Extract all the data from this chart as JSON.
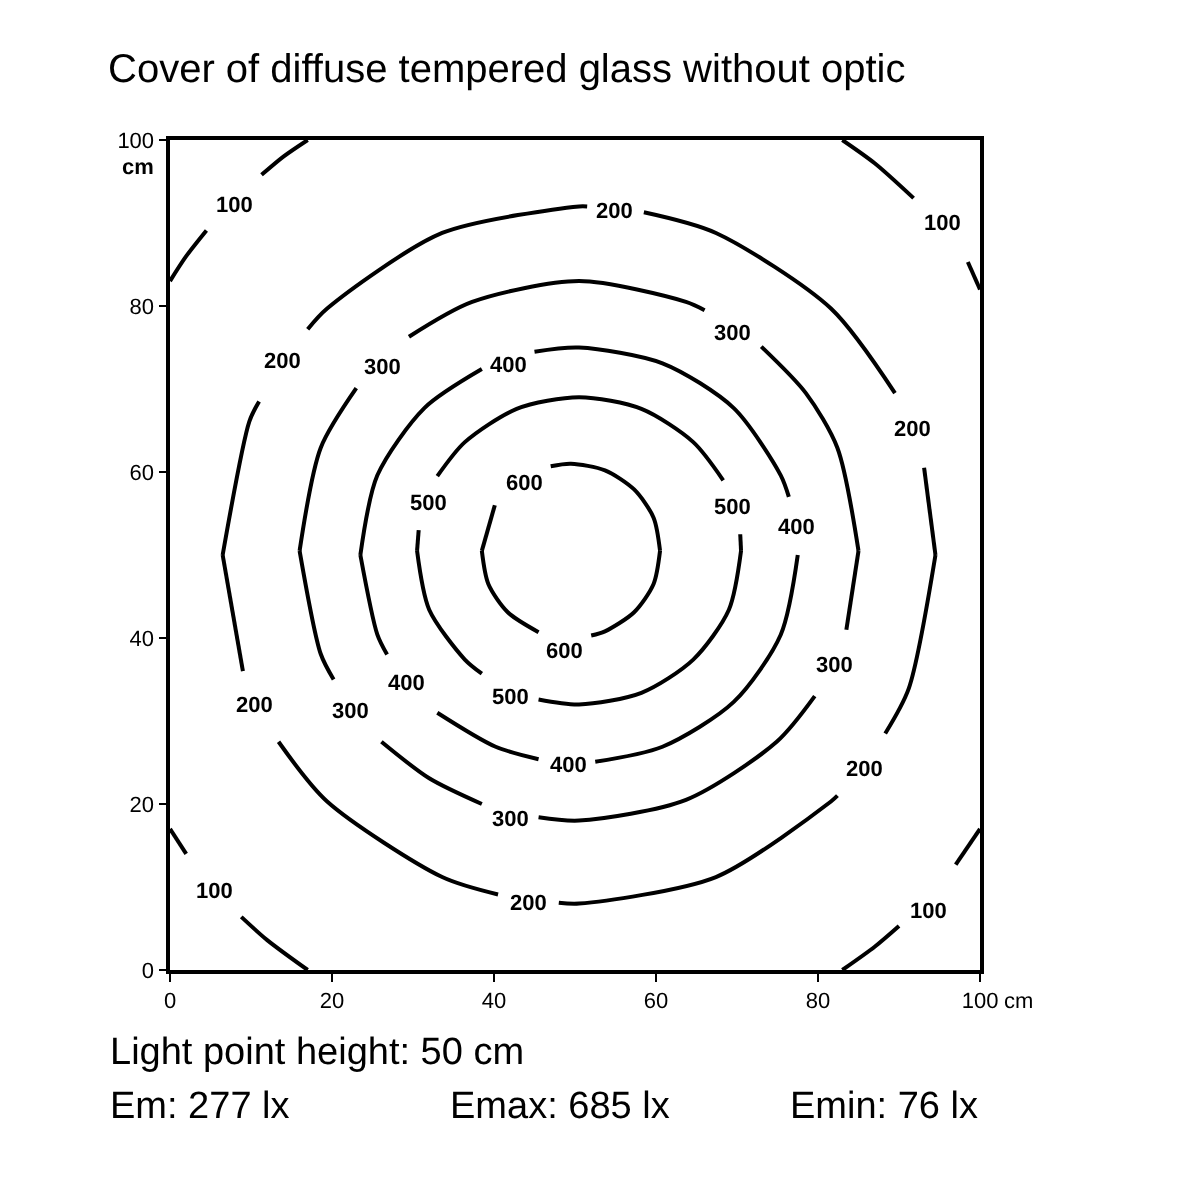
{
  "chart_data": {
    "type": "line",
    "title": "Cover of diffuse tempered glass without optic",
    "xlabel": "cm",
    "ylabel": "cm",
    "xlim": [
      0,
      100
    ],
    "ylim": [
      0,
      100
    ],
    "xticks": [
      0,
      20,
      40,
      60,
      80,
      100
    ],
    "yticks": [
      0,
      20,
      40,
      60,
      80,
      100
    ],
    "marker": "none",
    "line_style": "solid",
    "series": [
      {
        "color": "#000000",
        "x": [
          0,
          2,
          4.5,
          7.9,
          11.3,
          14,
          17
        ],
        "values": [
          83,
          86,
          89.1,
          null,
          95.8,
          98,
          100
        ]
      },
      {
        "color": "#000000",
        "x": [
          83,
          87,
          91.8,
          95.3,
          98.5,
          100
        ],
        "values": [
          100,
          97.2,
          93,
          null,
          85.3,
          82
        ]
      },
      {
        "color": "#000000",
        "x": [
          0,
          2,
          5.4,
          8.8,
          12,
          17
        ],
        "values": [
          17,
          14,
          null,
          6.4,
          3.6,
          0
        ]
      },
      {
        "color": "#000000",
        "x": [
          83,
          87,
          90,
          93.6,
          97,
          100
        ],
        "values": [
          0,
          2.8,
          5.3,
          null,
          12.7,
          17
        ]
      },
      {
        "color": "#000000",
        "x": [
          6.5,
          9.8,
          11,
          13.8,
          17,
          19.4,
          33.6,
          50.5,
          51.5,
          54.8,
          58.5,
          67.4,
          81.6,
          89.5,
          91.6,
          93.1,
          94.5
        ],
        "values": [
          50,
          66.1,
          68.5,
          null,
          77.2,
          79.7,
          88.8,
          92,
          92,
          null,
          91.3,
          88.8,
          79.7,
          69.5,
          null,
          60.5,
          50
        ]
      },
      {
        "color": "#000000",
        "x": [
          6.5,
          9,
          10.4,
          13.4,
          19.4,
          33.6,
          40.5,
          44.2,
          48,
          50.5,
          67.4,
          81.6,
          82.4,
          85.7,
          88.3,
          91.2,
          94.5
        ],
        "values": [
          50,
          36,
          null,
          27.5,
          20.3,
          11.2,
          9.1,
          null,
          8.1,
          8,
          11.2,
          20.3,
          21,
          null,
          28.5,
          33.9,
          50
        ]
      },
      {
        "color": "#000000",
        "x": [
          16,
          18.6,
          23,
          26.2,
          29.5,
          37.3,
          50.5,
          63.7,
          66,
          69.4,
          73,
          78.5,
          82.4,
          85
        ],
        "values": [
          50.5,
          62.9,
          70.1,
          null,
          76.3,
          80.5,
          83,
          80.5,
          79.5,
          null,
          75.1,
          69.5,
          62.9,
          50.5
        ]
      },
      {
        "color": "#000000",
        "x": [
          16,
          18.6,
          20.2,
          22.2,
          26.1,
          32,
          38.5,
          42,
          45.5,
          50.5,
          63.7,
          74.9,
          79.6,
          82,
          83.5,
          85
        ],
        "values": [
          50.5,
          38.1,
          35,
          null,
          27.5,
          23.1,
          20,
          null,
          18.4,
          18,
          20.5,
          27.5,
          33,
          null,
          41,
          50.5
        ]
      },
      {
        "color": "#000000",
        "x": [
          23.5,
          25.6,
          31.4,
          38.5,
          41.7,
          45,
          50.5,
          60.8,
          69.6,
          75.4,
          76.4
        ],
        "values": [
          50,
          59.6,
          67.7,
          72.4,
          null,
          74.5,
          75,
          73.1,
          67.7,
          59.6,
          57
        ]
      },
      {
        "color": "#000000",
        "x": [
          23.5,
          25.6,
          26.8,
          29.1,
          33,
          40.2,
          45.5,
          49.1,
          52.5,
          60.8,
          69.6,
          75.4,
          77.5
        ],
        "values": [
          50,
          40.4,
          38,
          null,
          31,
          26.9,
          25.4,
          null,
          25.1,
          26.9,
          32.3,
          40.4,
          50
        ]
      },
      {
        "color": "#000000",
        "x": [
          30.5,
          30.7,
          31.9,
          33,
          36.4,
          42.8,
          50.5,
          58.2,
          64.6,
          68.3,
          69.4,
          70.4,
          70.5
        ],
        "values": [
          50.5,
          53,
          null,
          59.5,
          63.6,
          67.6,
          69,
          67.6,
          63.6,
          59,
          null,
          52.5,
          50.5
        ]
      },
      {
        "color": "#000000",
        "x": [
          30.5,
          32,
          36.4,
          38.5,
          42,
          45.5,
          50.5,
          58.2,
          64.6,
          69,
          70.5
        ],
        "values": [
          50.5,
          43.4,
          37.4,
          35.7,
          null,
          32.6,
          32,
          33.4,
          37.4,
          43.4,
          50.5
        ]
      },
      {
        "color": "#000000",
        "x": [
          38.5,
          40.1,
          43.7,
          47,
          49.5,
          53.7,
          57.3,
          59.7,
          60.5
        ],
        "values": [
          50.5,
          56,
          null,
          60.7,
          61,
          60.2,
          57.9,
          54.5,
          50.5
        ]
      },
      {
        "color": "#000000",
        "x": [
          38.5,
          39.3,
          41.7,
          45.5,
          48.6,
          52,
          53.7,
          57.3,
          59.7,
          60.5
        ],
        "values": [
          50.5,
          46.5,
          43.1,
          40.7,
          null,
          40.3,
          40.8,
          43.1,
          46.5,
          50.5
        ]
      }
    ],
    "annotations": [
      {
        "text": "100",
        "x": 7.9,
        "y": 92
      },
      {
        "text": "200",
        "x": 54.8,
        "y": 91.3
      },
      {
        "text": "100",
        "x": 95.3,
        "y": 89.9
      },
      {
        "text": "300",
        "x": 69.4,
        "y": 76.6
      },
      {
        "text": "200",
        "x": 13.8,
        "y": 73.3
      },
      {
        "text": "300",
        "x": 26.2,
        "y": 72.5
      },
      {
        "text": "400",
        "x": 41.7,
        "y": 72.8
      },
      {
        "text": "600",
        "x": 43.7,
        "y": 58.6
      },
      {
        "text": "500",
        "x": 31.9,
        "y": 56.1
      },
      {
        "text": "500",
        "x": 69.4,
        "y": 55.7
      },
      {
        "text": "400",
        "x": 77.3,
        "y": 53.3
      },
      {
        "text": "200",
        "x": 91.6,
        "y": 65.1
      },
      {
        "text": "600",
        "x": 48.6,
        "y": 38.3
      },
      {
        "text": "300",
        "x": 82,
        "y": 36.6
      },
      {
        "text": "400",
        "x": 29.1,
        "y": 34.5
      },
      {
        "text": "500",
        "x": 42,
        "y": 32.8
      },
      {
        "text": "200",
        "x": 10.4,
        "y": 31.8
      },
      {
        "text": "300",
        "x": 22.2,
        "y": 31.1
      },
      {
        "text": "200",
        "x": 85.7,
        "y": 24.1
      },
      {
        "text": "400",
        "x": 49.1,
        "y": 24.6
      },
      {
        "text": "300",
        "x": 42,
        "y": 18.1
      },
      {
        "text": "100",
        "x": 5.4,
        "y": 9.4
      },
      {
        "text": "200",
        "x": 44.2,
        "y": 8
      },
      {
        "text": "100",
        "x": 93.6,
        "y": 7
      },
      "Light point height: 50 cm",
      "Em: 277 lx",
      "Emax: 685 lx",
      "Emin: 76 lx"
    ]
  }
}
